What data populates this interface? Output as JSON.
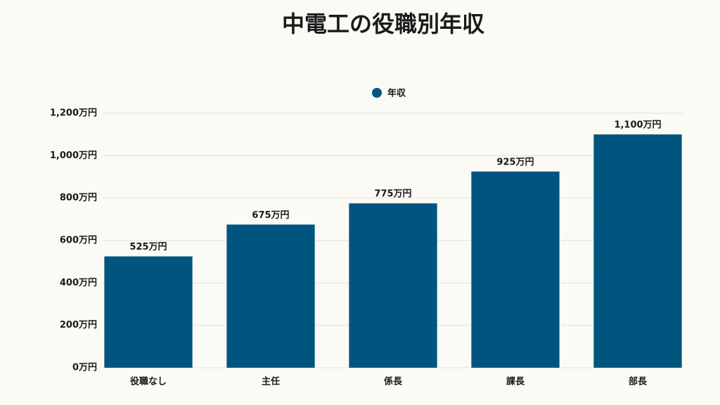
{
  "chart_data": {
    "type": "bar",
    "title": "中電工の役職別年収",
    "categories": [
      "役職なし",
      "主任",
      "係長",
      "課長",
      "部長"
    ],
    "series": [
      {
        "name": "年収",
        "color": "#00557f",
        "values": [
          525,
          675,
          775,
          925,
          1100
        ],
        "value_labels": [
          "525万円",
          "675万円",
          "775万円",
          "925万円",
          "1,100万円"
        ]
      }
    ],
    "ylim": [
      0,
      1200
    ],
    "yticks": [
      {
        "value": 0,
        "label": "0万円"
      },
      {
        "value": 200,
        "label": "200万円"
      },
      {
        "value": 400,
        "label": "400万円"
      },
      {
        "value": 600,
        "label": "600万円"
      },
      {
        "value": 800,
        "label": "800万円"
      },
      {
        "value": 1000,
        "label": "1,000万円"
      },
      {
        "value": 1200,
        "label": "1,200万円"
      }
    ],
    "grid": true,
    "legend": "top"
  }
}
